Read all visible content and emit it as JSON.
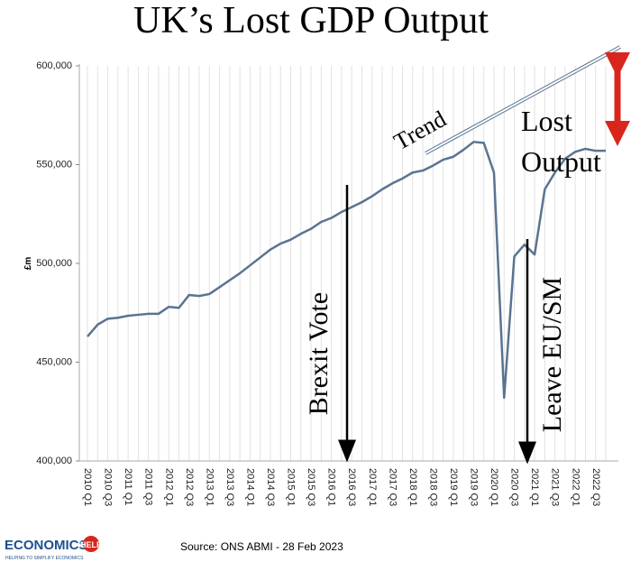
{
  "chart_data": {
    "type": "line",
    "title": "UK’s Lost GDP Output",
    "ylabel": "£m",
    "categories": [
      "2010 Q1",
      null,
      "2010 Q3",
      null,
      "2011 Q1",
      null,
      "2011 Q3",
      null,
      "2012 Q1",
      null,
      "2012 Q3",
      null,
      "2013 Q1",
      null,
      "2013 Q3",
      null,
      "2014 Q1",
      null,
      "2014 Q3",
      null,
      "2015 Q1",
      null,
      "2015 Q3",
      null,
      "2016 Q1",
      null,
      "2016 Q3",
      null,
      "2017 Q1",
      null,
      "2017 Q3",
      null,
      "2018 Q1",
      null,
      "2018 Q3",
      null,
      "2019 Q1",
      null,
      "2019 Q3",
      null,
      "2020 Q1",
      null,
      "2020 Q3",
      null,
      "2021 Q1",
      null,
      "2021 Q3",
      null,
      "2022 Q1",
      null,
      "2022 Q3",
      null
    ],
    "values": [
      463000,
      469000,
      472000,
      472500,
      473500,
      474000,
      474500,
      474500,
      478000,
      477500,
      484000,
      483500,
      484500,
      488000,
      491500,
      495000,
      499000,
      503000,
      507000,
      510000,
      512000,
      515000,
      517500,
      521000,
      523000,
      526000,
      528500,
      531000,
      534000,
      537500,
      540500,
      543000,
      546000,
      547000,
      549500,
      552500,
      554000,
      557500,
      561500,
      561000,
      546000,
      432000,
      503500,
      509500,
      504500,
      537500,
      546000,
      553000,
      556500,
      558000,
      557000,
      557000
    ],
    "color": "#5a7391",
    "ylim": [
      400000,
      600000
    ],
    "yticks": [
      {
        "value": 400000,
        "label": "400,000"
      },
      {
        "value": 450000,
        "label": "450,000"
      },
      {
        "value": 500000,
        "label": "500,000"
      },
      {
        "value": 550000,
        "label": "550,000"
      },
      {
        "value": 600000,
        "label": "600,000"
      }
    ],
    "annotations": {
      "trend": "Trend",
      "lost_output": [
        "Lost",
        "Output"
      ],
      "brexit": "Brexit Vote",
      "leave": "Leave EU/SM"
    }
  },
  "footer": {
    "source": "Source: ONS ABMI - 28 Feb 2023",
    "logo": [
      "ECONOMICS",
      "HELP"
    ],
    "tagline": "HELPING TO SIMPLIFY ECONOMICS"
  }
}
